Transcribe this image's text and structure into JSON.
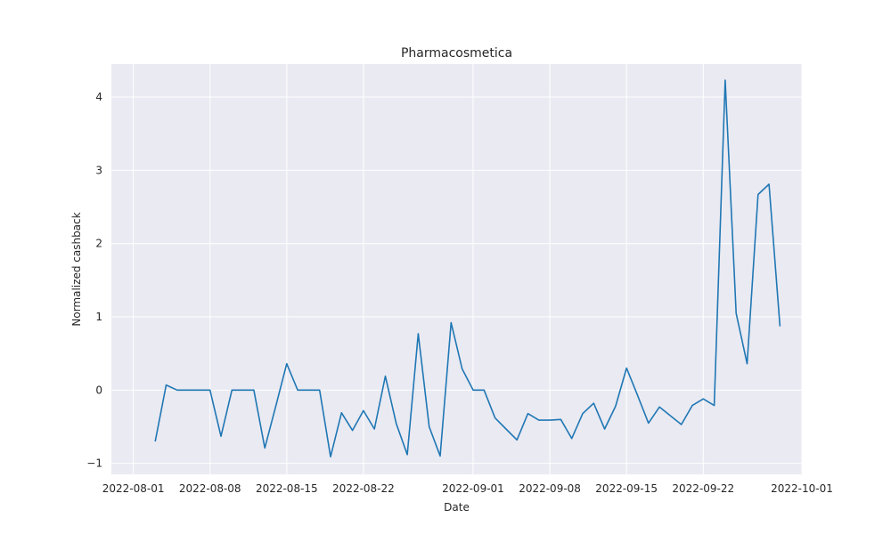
{
  "chart_data": {
    "type": "line",
    "title": "Pharmacosmetica",
    "xlabel": "Date",
    "ylabel": "Normalized cashback",
    "x_tick_labels": [
      "2022-08-01",
      "2022-08-08",
      "2022-08-15",
      "2022-08-22",
      "2022-09-01",
      "2022-09-08",
      "2022-09-15",
      "2022-09-22",
      "2022-10-01"
    ],
    "y_tick_labels": [
      "−1",
      "0",
      "1",
      "2",
      "3",
      "4"
    ],
    "xlim": [
      "2022-07-30",
      "2022-10-01"
    ],
    "ylim": [
      -1.15,
      4.45
    ],
    "grid": true,
    "colors": {
      "background": "#eaeaf2",
      "grid": "#ffffff",
      "line": "#1f77b4"
    },
    "series": [
      {
        "x": [
          "2022-08-03",
          "2022-08-04",
          "2022-08-05",
          "2022-08-06",
          "2022-08-07",
          "2022-08-08",
          "2022-08-09",
          "2022-08-10",
          "2022-08-11",
          "2022-08-12",
          "2022-08-13",
          "2022-08-14",
          "2022-08-15",
          "2022-08-16",
          "2022-08-17",
          "2022-08-18",
          "2022-08-19",
          "2022-08-20",
          "2022-08-21",
          "2022-08-22",
          "2022-08-23",
          "2022-08-24",
          "2022-08-25",
          "2022-08-26",
          "2022-08-27",
          "2022-08-28",
          "2022-08-29",
          "2022-08-30",
          "2022-08-31",
          "2022-09-01",
          "2022-09-02",
          "2022-09-03",
          "2022-09-04",
          "2022-09-05",
          "2022-09-06",
          "2022-09-07",
          "2022-09-08",
          "2022-09-09",
          "2022-09-10",
          "2022-09-11",
          "2022-09-12",
          "2022-09-13",
          "2022-09-14",
          "2022-09-15",
          "2022-09-16",
          "2022-09-17",
          "2022-09-18",
          "2022-09-19",
          "2022-09-20",
          "2022-09-21",
          "2022-09-22",
          "2022-09-23",
          "2022-09-24",
          "2022-09-25",
          "2022-09-26",
          "2022-09-27",
          "2022-09-28",
          "2022-09-29"
        ],
        "values": [
          -0.7,
          0.07,
          0.0,
          0.0,
          0.0,
          0.0,
          -0.63,
          0.0,
          0.0,
          0.0,
          -0.79,
          -0.22,
          0.36,
          0.0,
          0.0,
          0.0,
          -0.91,
          -0.31,
          -0.55,
          -0.28,
          -0.53,
          0.19,
          -0.46,
          -0.88,
          0.77,
          -0.5,
          -0.9,
          0.92,
          0.29,
          0.0,
          0.0,
          -0.38,
          -0.53,
          -0.68,
          -0.32,
          -0.41,
          -0.41,
          -0.4,
          -0.66,
          -0.32,
          -0.18,
          -0.53,
          -0.22,
          0.3,
          -0.07,
          -0.45,
          -0.23,
          -0.35,
          -0.47,
          -0.21,
          -0.12,
          -0.21,
          4.23,
          1.05,
          0.36,
          2.67,
          2.81,
          0.87
        ]
      }
    ]
  }
}
